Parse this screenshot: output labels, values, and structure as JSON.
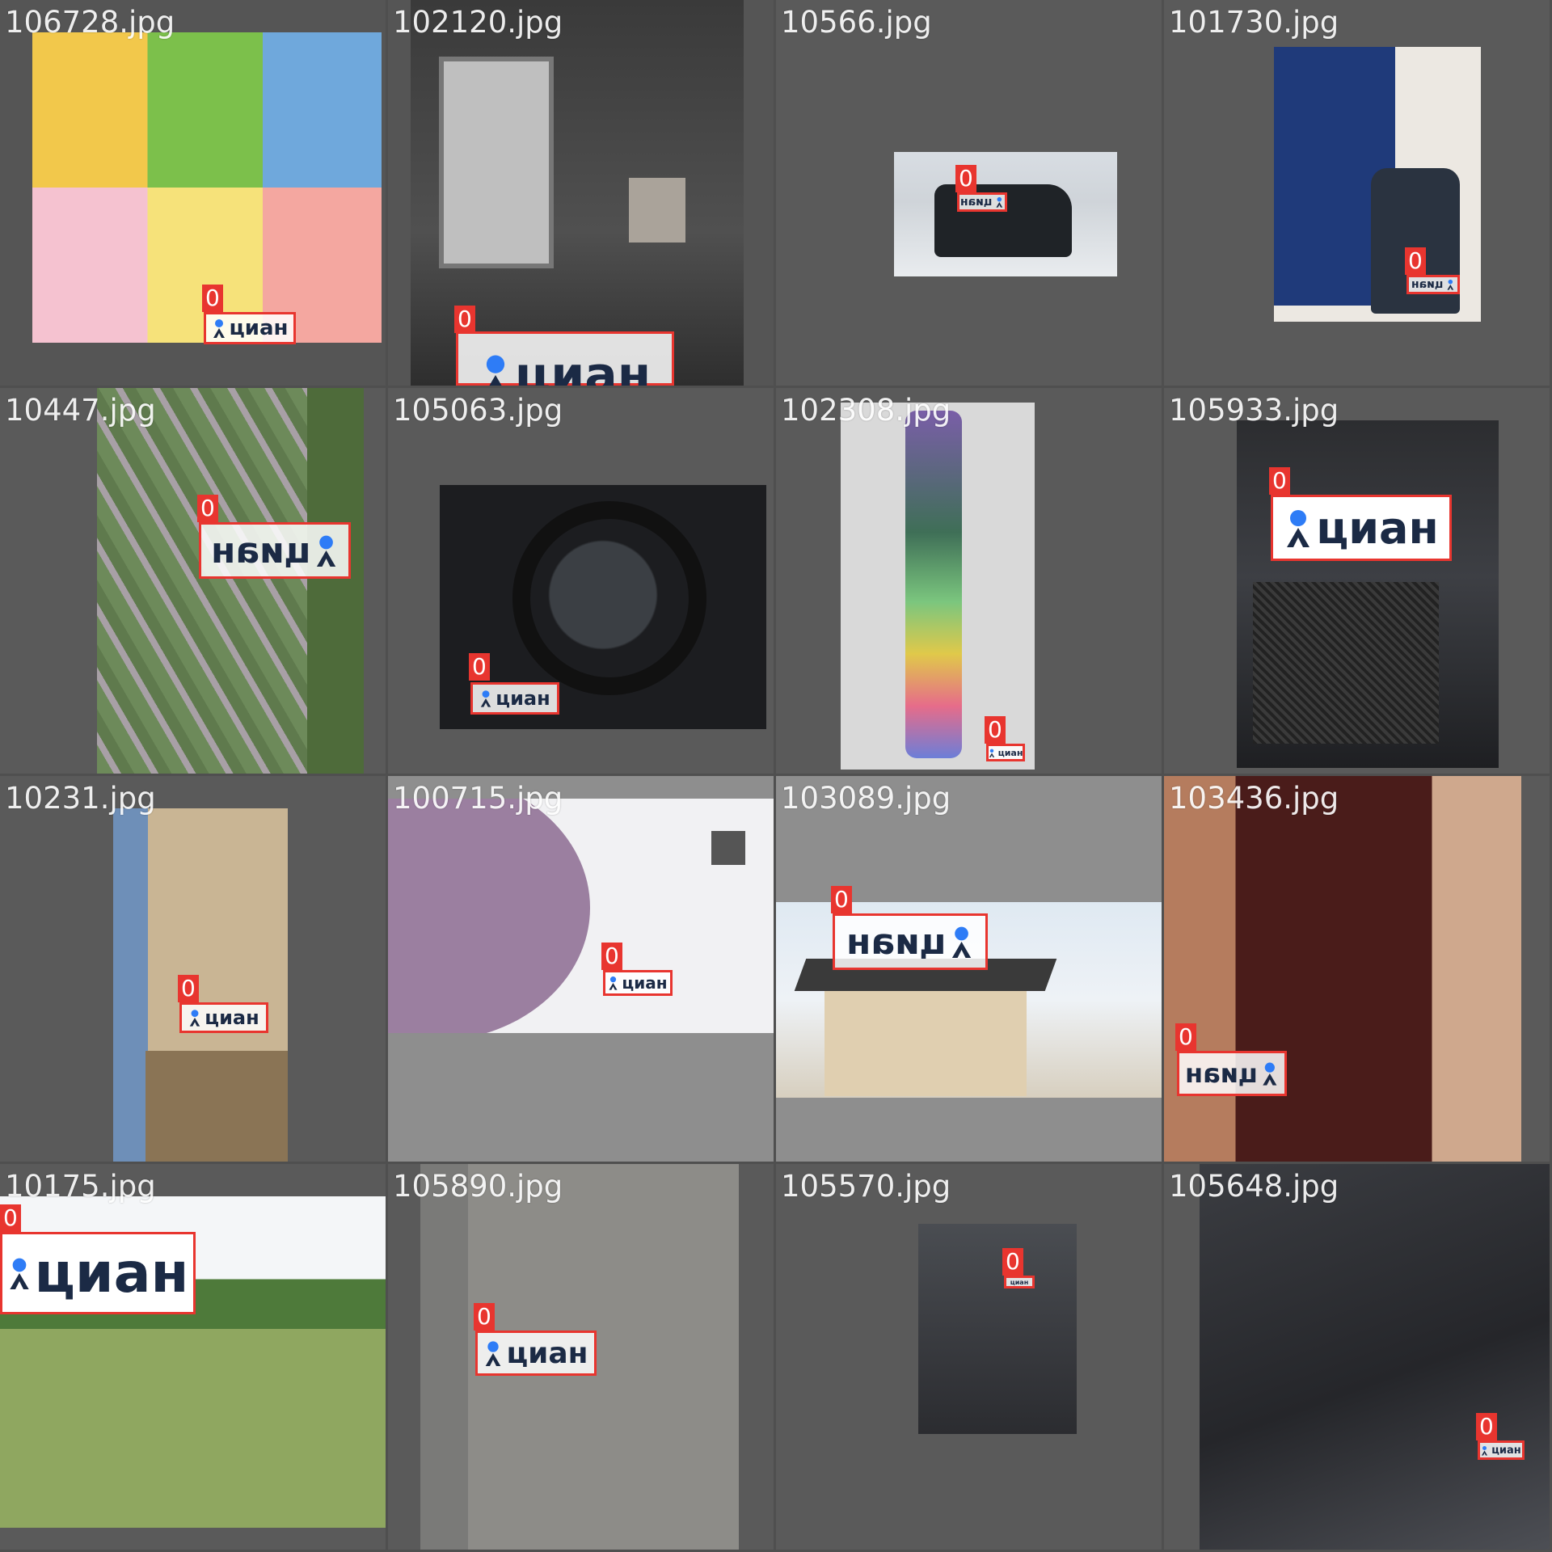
{
  "tiles": [
    {
      "filename": "106728.jpg",
      "label": "0",
      "watermark": "циан"
    },
    {
      "filename": "102120.jpg",
      "label": "0",
      "watermark": "циан"
    },
    {
      "filename": "10566.jpg",
      "label": "0",
      "watermark": "циан"
    },
    {
      "filename": "101730.jpg",
      "label": "0",
      "watermark": "циан"
    },
    {
      "filename": "10447.jpg",
      "label": "0",
      "watermark": "циан"
    },
    {
      "filename": "105063.jpg",
      "label": "0",
      "watermark": "циан"
    },
    {
      "filename": "102308.jpg",
      "label": "0",
      "watermark": "циан"
    },
    {
      "filename": "105933.jpg",
      "label": "0",
      "watermark": "циан"
    },
    {
      "filename": "10231.jpg",
      "label": "0",
      "watermark": "циан"
    },
    {
      "filename": "100715.jpg",
      "label": "0",
      "watermark": "циан"
    },
    {
      "filename": "103089.jpg",
      "label": "0",
      "watermark": "циан"
    },
    {
      "filename": "103436.jpg",
      "label": "0",
      "watermark": "циан"
    },
    {
      "filename": "10175.jpg",
      "label": "0",
      "watermark": "циан"
    },
    {
      "filename": "105890.jpg",
      "label": "0",
      "watermark": "циан"
    },
    {
      "filename": "105570.jpg",
      "label": "0",
      "watermark": "циан"
    },
    {
      "filename": "105648.jpg",
      "label": "0",
      "watermark": "циан"
    }
  ],
  "colors": {
    "box": "#e8352f",
    "watermark_text": "#1b2a45",
    "pin": "#2e7cf6"
  }
}
